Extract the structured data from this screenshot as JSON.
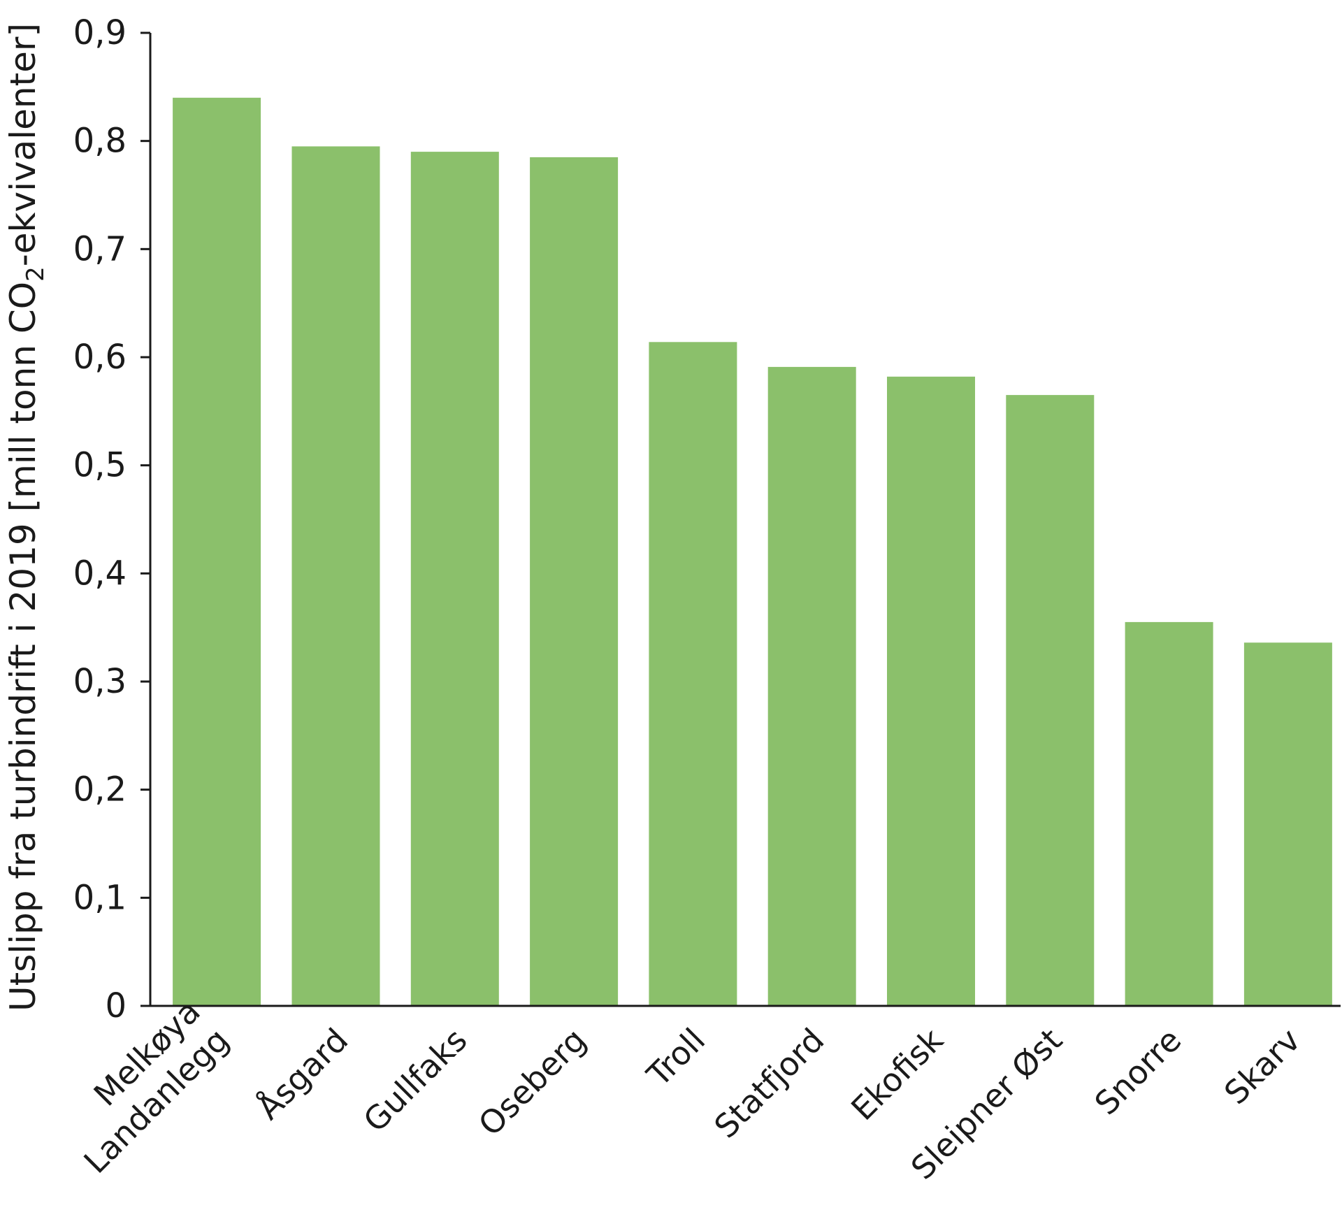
{
  "chart_data": {
    "type": "bar",
    "title": "",
    "xlabel": "",
    "ylabel": {
      "prefix": "Utslipp fra turbindrift i 2019 [mill tonn CO",
      "subscript": "2",
      "suffix": "-ekvivalenter]"
    },
    "categories": [
      [
        "Melkøya",
        "Landanlegg"
      ],
      [
        "Åsgard"
      ],
      [
        "Gullfaks"
      ],
      [
        "Oseberg"
      ],
      [
        "Troll"
      ],
      [
        "Statfjord"
      ],
      [
        "Ekofisk"
      ],
      [
        "Sleipner Øst"
      ],
      [
        "Snorre"
      ],
      [
        "Skarv"
      ]
    ],
    "values": [
      0.84,
      0.795,
      0.79,
      0.785,
      0.614,
      0.591,
      0.582,
      0.565,
      0.355,
      0.336
    ],
    "ylim": [
      0,
      0.9
    ],
    "yticks": [
      0,
      0.1,
      0.2,
      0.3,
      0.4,
      0.5,
      0.6,
      0.7,
      0.8,
      0.9
    ],
    "ytick_labels": [
      "0",
      "0,1",
      "0,2",
      "0,3",
      "0,4",
      "0,5",
      "0,6",
      "0,7",
      "0,8",
      "0,9"
    ],
    "bar_color": "#8bc06b",
    "axis_color": "#1a1a1a",
    "grid": false,
    "legend": "none"
  }
}
